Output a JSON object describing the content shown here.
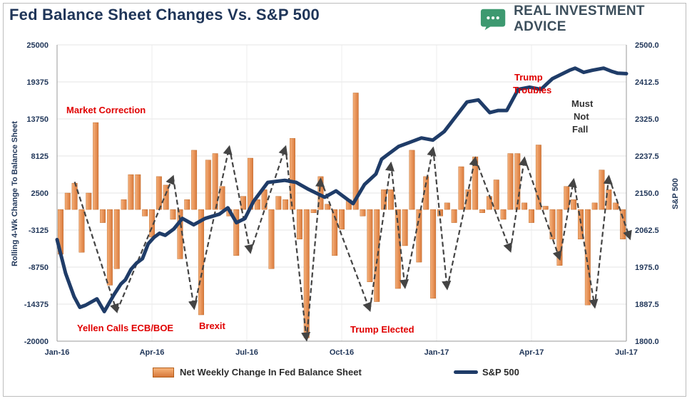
{
  "header": {
    "title": "Fed Balance Sheet Changes Vs. S&P 500",
    "brand": "REAL INVESTMENT ADVICE",
    "brand_icon": "chat-bubble-icon",
    "brand_color": "#3d9970"
  },
  "colors": {
    "bar": "#e9924f",
    "bar_edge": "#b35e1a",
    "line": "#1f3c68",
    "annotation_red": "#e00000",
    "annotation_dark": "#333333"
  },
  "chart_data": {
    "type": "bar+line",
    "title": "Fed Balance Sheet Changes Vs. S&P 500",
    "x_ticks": [
      "Jan-16",
      "Apr-16",
      "Jul-16",
      "Oct-16",
      "Jan-17",
      "Apr-17",
      "Jul-17"
    ],
    "y_left": {
      "label": "Rolling 4-Wk Change To Balance Sheet",
      "ylim": [
        -20000,
        25000
      ],
      "ticks": [
        "25000",
        "19375",
        "13750",
        "8125",
        "2500",
        "-3125",
        "-8750",
        "-14375",
        "-20000"
      ]
    },
    "y_right": {
      "label": "S&P 500",
      "ylim": [
        1800,
        2500
      ],
      "ticks": [
        "2500.0",
        "2412.5",
        "2325.0",
        "2237.5",
        "2150.0",
        "2062.5",
        "1975.0",
        "1887.5",
        "1800.0"
      ]
    },
    "series": [
      {
        "name": "Net Weekly Change In Fed Balance Sheet",
        "axis": "left",
        "type": "bar",
        "values": [
          -6800,
          2500,
          4000,
          -6500,
          2500,
          13200,
          -2000,
          -11500,
          -9000,
          1500,
          5300,
          5300,
          -1000,
          -4200,
          5000,
          3700,
          -1500,
          -7500,
          1500,
          9000,
          -16000,
          7500,
          8500,
          3500,
          -1000,
          -7000,
          2000,
          7800,
          1500,
          3000,
          -9000,
          2000,
          1500,
          10800,
          -4500,
          -19500,
          -500,
          5000,
          800,
          -7000,
          -3000,
          1500,
          17700,
          -1000,
          -11000,
          -14000,
          3000,
          3000,
          -12000,
          -5500,
          9000,
          -8000,
          5000,
          -13500,
          -1000,
          1000,
          -2000,
          6500,
          3000,
          8000,
          -500,
          2000,
          4500,
          -1500,
          8500,
          8500,
          1000,
          -2000,
          9800,
          500,
          -4500,
          -8500,
          3500,
          1500,
          -4500,
          -14500,
          1000,
          6000,
          3000,
          1000,
          -4500
        ]
      },
      {
        "name": "S&P 500",
        "axis": "right",
        "type": "line",
        "x_frac": [
          0,
          0.015,
          0.03,
          0.04,
          0.05,
          0.07,
          0.083,
          0.1,
          0.112,
          0.12,
          0.13,
          0.14,
          0.15,
          0.16,
          0.17,
          0.18,
          0.19,
          0.205,
          0.22,
          0.24,
          0.26,
          0.285,
          0.3,
          0.315,
          0.33,
          0.345,
          0.37,
          0.4,
          0.42,
          0.44,
          0.47,
          0.49,
          0.5,
          0.52,
          0.54,
          0.56,
          0.57,
          0.58,
          0.6,
          0.62,
          0.64,
          0.66,
          0.68,
          0.7,
          0.72,
          0.74,
          0.76,
          0.775,
          0.79,
          0.81,
          0.83,
          0.85,
          0.87,
          0.885,
          0.9,
          0.91,
          0.925,
          0.94,
          0.96,
          0.975,
          0.985,
          1.0
        ],
        "values": [
          2040,
          1960,
          1905,
          1880,
          1885,
          1900,
          1870,
          1910,
          1935,
          1945,
          1970,
          1985,
          1995,
          2030,
          2045,
          2055,
          2050,
          2065,
          2090,
          2075,
          2090,
          2100,
          2115,
          2080,
          2090,
          2130,
          2175,
          2180,
          2175,
          2160,
          2140,
          2155,
          2145,
          2125,
          2170,
          2195,
          2230,
          2240,
          2260,
          2270,
          2280,
          2275,
          2295,
          2330,
          2365,
          2370,
          2340,
          2345,
          2345,
          2395,
          2400,
          2395,
          2420,
          2430,
          2440,
          2445,
          2435,
          2440,
          2445,
          2437,
          2433,
          2432
        ]
      }
    ],
    "annotations": [
      {
        "text": "Market Correction",
        "color": "red"
      },
      {
        "text": "Yellen Calls ECB/BOE",
        "color": "red"
      },
      {
        "text": "Brexit",
        "color": "red"
      },
      {
        "text": "Trump Elected",
        "color": "red"
      },
      {
        "text": "Trump",
        "color": "red"
      },
      {
        "text": "Troubles",
        "color": "red"
      },
      {
        "text": "Must",
        "color": "dark"
      },
      {
        "text": "Not",
        "color": "dark"
      },
      {
        "text": "Fall",
        "color": "dark"
      }
    ],
    "legend": [
      "Net Weekly Change In Fed Balance Sheet",
      "S&P 500"
    ]
  }
}
